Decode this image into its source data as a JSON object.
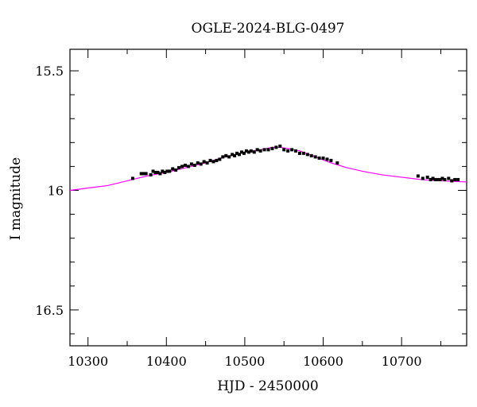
{
  "chart_data": {
    "type": "scatter",
    "title": "OGLE-2024-BLG-0497",
    "xlabel": "HJD - 2450000",
    "ylabel": "I magnitude",
    "xlim": [
      10277,
      10783
    ],
    "ylim": [
      16.65,
      15.41
    ],
    "y_inverted": true,
    "x_major_ticks": [
      10300,
      10400,
      10500,
      10600,
      10700
    ],
    "x_tick_labels": [
      "10300",
      "10400",
      "10500",
      "10600",
      "10700"
    ],
    "x_minor_step": 50,
    "y_major_ticks": [
      15.5,
      16,
      16.5
    ],
    "y_tick_labels": [
      "15.5",
      "16",
      "16.5"
    ],
    "y_minor_step": 0.1,
    "grid": false,
    "colors": {
      "data": "#000000",
      "model": "#ff00ff",
      "frame": "#000000"
    },
    "series": [
      {
        "kind": "points",
        "error": 0.006,
        "x": [
          10357,
          10368,
          10371,
          10374,
          10380,
          10383,
          10386,
          10389,
          10392,
          10395,
          10398,
          10401,
          10404,
          10408,
          10412,
          10416,
          10420,
          10424,
          10428,
          10432,
          10436,
          10440,
          10444,
          10448,
          10452,
          10456,
          10460,
          10464,
          10468,
          10472,
          10476,
          10480,
          10484,
          10487,
          10490,
          10493,
          10496,
          10499,
          10502,
          10505,
          10508,
          10512,
          10516,
          10520,
          10525,
          10530,
          10535,
          10540,
          10545,
          10550,
          10555,
          10560,
          10565,
          10570,
          10575,
          10580,
          10585,
          10590,
          10595,
          10600,
          10605,
          10610,
          10618,
          10721,
          10727,
          10733,
          10737,
          10740,
          10743,
          10746,
          10749,
          10752,
          10755,
          10760,
          10764,
          10768,
          10772
        ],
        "y": [
          15.95,
          15.93,
          15.93,
          15.93,
          15.935,
          15.92,
          15.925,
          15.925,
          15.93,
          15.92,
          15.925,
          15.92,
          15.92,
          15.91,
          15.915,
          15.905,
          15.9,
          15.895,
          15.9,
          15.89,
          15.895,
          15.885,
          15.89,
          15.88,
          15.885,
          15.875,
          15.88,
          15.875,
          15.87,
          15.86,
          15.855,
          15.86,
          15.85,
          15.855,
          15.845,
          15.85,
          15.84,
          15.845,
          15.835,
          15.84,
          15.835,
          15.84,
          15.83,
          15.835,
          15.83,
          15.83,
          15.825,
          15.82,
          15.815,
          15.83,
          15.835,
          15.83,
          15.835,
          15.845,
          15.845,
          15.85,
          15.855,
          15.86,
          15.865,
          15.865,
          15.87,
          15.875,
          15.885,
          15.94,
          15.95,
          15.945,
          15.955,
          15.95,
          15.955,
          15.955,
          15.955,
          15.95,
          15.955,
          15.95,
          15.96,
          15.955,
          15.955
        ]
      },
      {
        "kind": "model",
        "x": [
          10277,
          10300,
          10325,
          10350,
          10375,
          10400,
          10425,
          10450,
          10475,
          10500,
          10520,
          10535,
          10545,
          10555,
          10570,
          10590,
          10610,
          10630,
          10650,
          10675,
          10700,
          10725,
          10750,
          10783
        ],
        "y": [
          16.0,
          15.99,
          15.98,
          15.96,
          15.94,
          15.925,
          15.905,
          15.885,
          15.86,
          15.84,
          15.83,
          15.82,
          15.82,
          15.825,
          15.835,
          15.86,
          15.885,
          15.905,
          15.92,
          15.935,
          15.945,
          15.955,
          15.96,
          15.965
        ]
      }
    ]
  }
}
